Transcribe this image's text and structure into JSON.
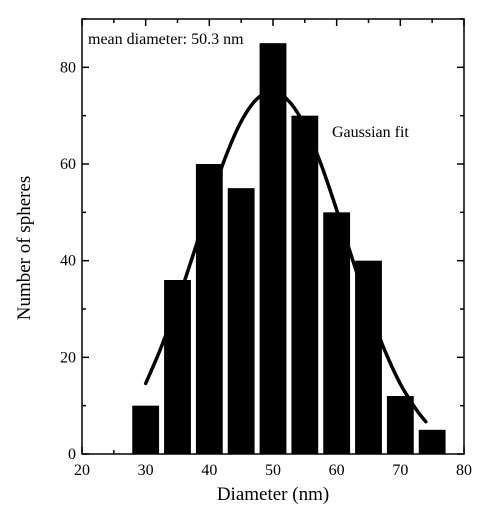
{
  "chart_data": {
    "type": "bar",
    "xlabel": "Diameter (nm)",
    "ylabel": "Number of spheres",
    "xlim": [
      20,
      80
    ],
    "ylim": [
      0,
      90
    ],
    "x_ticks": [
      20,
      30,
      40,
      50,
      60,
      70,
      80
    ],
    "y_ticks": [
      0,
      20,
      40,
      60,
      80
    ],
    "bin_width": 5,
    "series": [
      {
        "x": [
          30,
          35,
          40,
          45,
          50,
          55,
          60,
          65,
          70,
          75
        ],
        "values": [
          10,
          36,
          60,
          55,
          85,
          70,
          50,
          40,
          12,
          5
        ]
      },
      {
        "type": "line",
        "name": "Gaussian fit",
        "x": [
          30,
          32.5,
          35,
          37.5,
          40,
          42.5,
          45,
          47.5,
          50,
          52.5,
          55,
          57.5,
          60,
          62.5,
          65,
          67.5,
          70,
          72.5,
          74
        ],
        "values": [
          14.6,
          22.3,
          31.5,
          41.4,
          51.8,
          61.3,
          68.8,
          73.5,
          75,
          73,
          67.9,
          60.1,
          50.5,
          40.2,
          30.3,
          21.6,
          14.5,
          9.2,
          6.7
        ]
      }
    ],
    "annotations": [
      "mean diameter: 50.3 nm",
      "Gaussian fit"
    ],
    "grid": false,
    "legend": "none"
  }
}
